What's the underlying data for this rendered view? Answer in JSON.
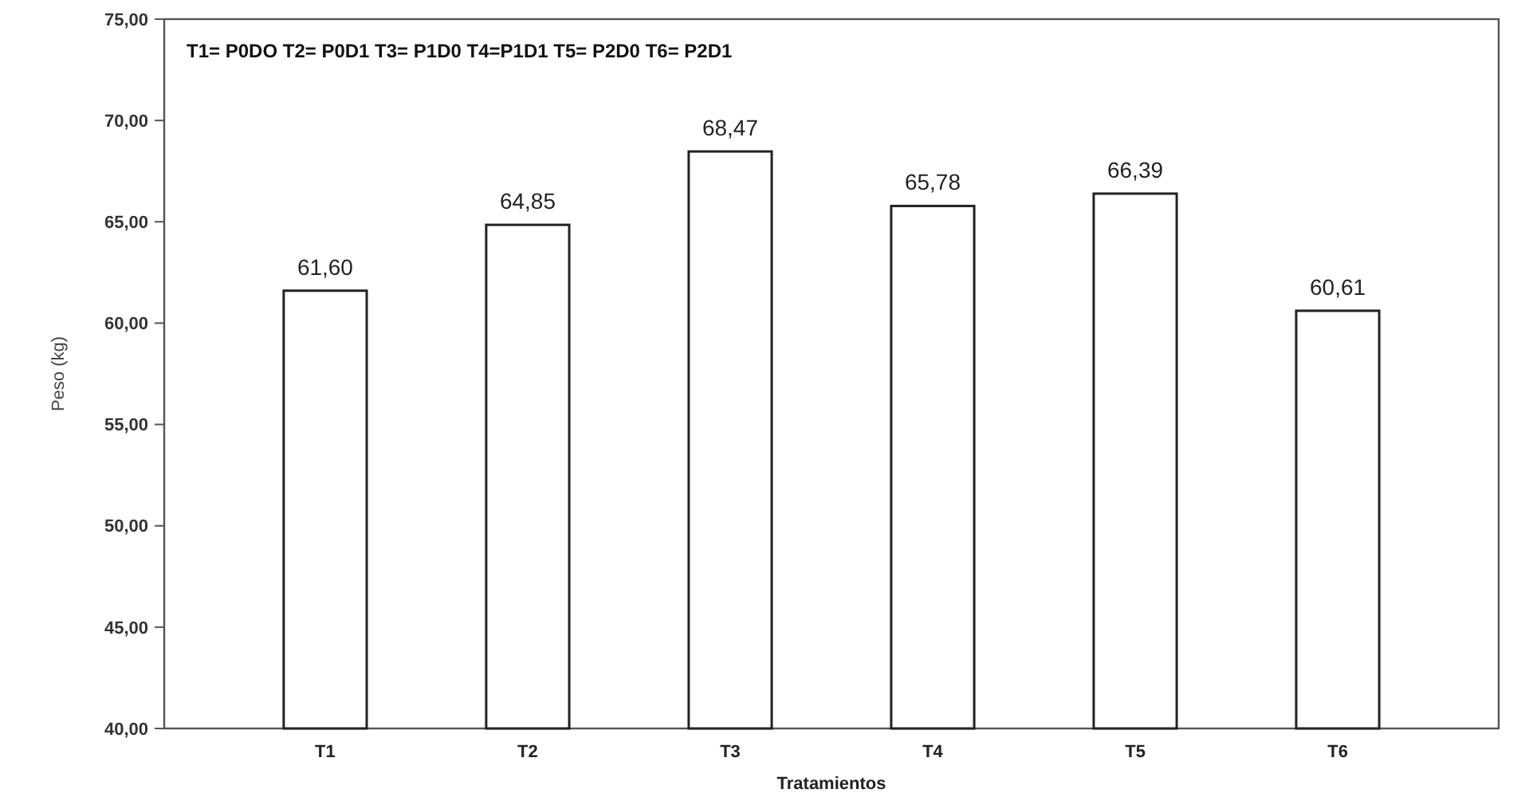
{
  "chart_data": {
    "type": "bar",
    "xlabel": "Tratamientos",
    "ylabel": "Peso (kg)",
    "annotations": [
      "T1= P0DO  T2= P0D1  T3= P1D0  T4=P1D1  T5= P2D0  T6= P2D1"
    ],
    "categories": [
      "T1",
      "T2",
      "T3",
      "T4",
      "T5",
      "T6"
    ],
    "values": [
      61.6,
      64.85,
      68.47,
      65.78,
      66.39,
      60.61
    ],
    "value_labels": [
      "61,60",
      "64,85",
      "68,47",
      "65,78",
      "66,39",
      "60,61"
    ],
    "color": "#ffffff",
    "ylim": [
      40,
      75
    ],
    "yticks": [
      {
        "value": 40,
        "label": "40,00"
      },
      {
        "value": 45,
        "label": "45,00"
      },
      {
        "value": 50,
        "label": "50,00"
      },
      {
        "value": 55,
        "label": "55,00"
      },
      {
        "value": 60,
        "label": "60,00"
      },
      {
        "value": 65,
        "label": "65,00"
      },
      {
        "value": 70,
        "label": "70,00"
      },
      {
        "value": 75,
        "label": "75,00"
      }
    ],
    "grid": false
  }
}
